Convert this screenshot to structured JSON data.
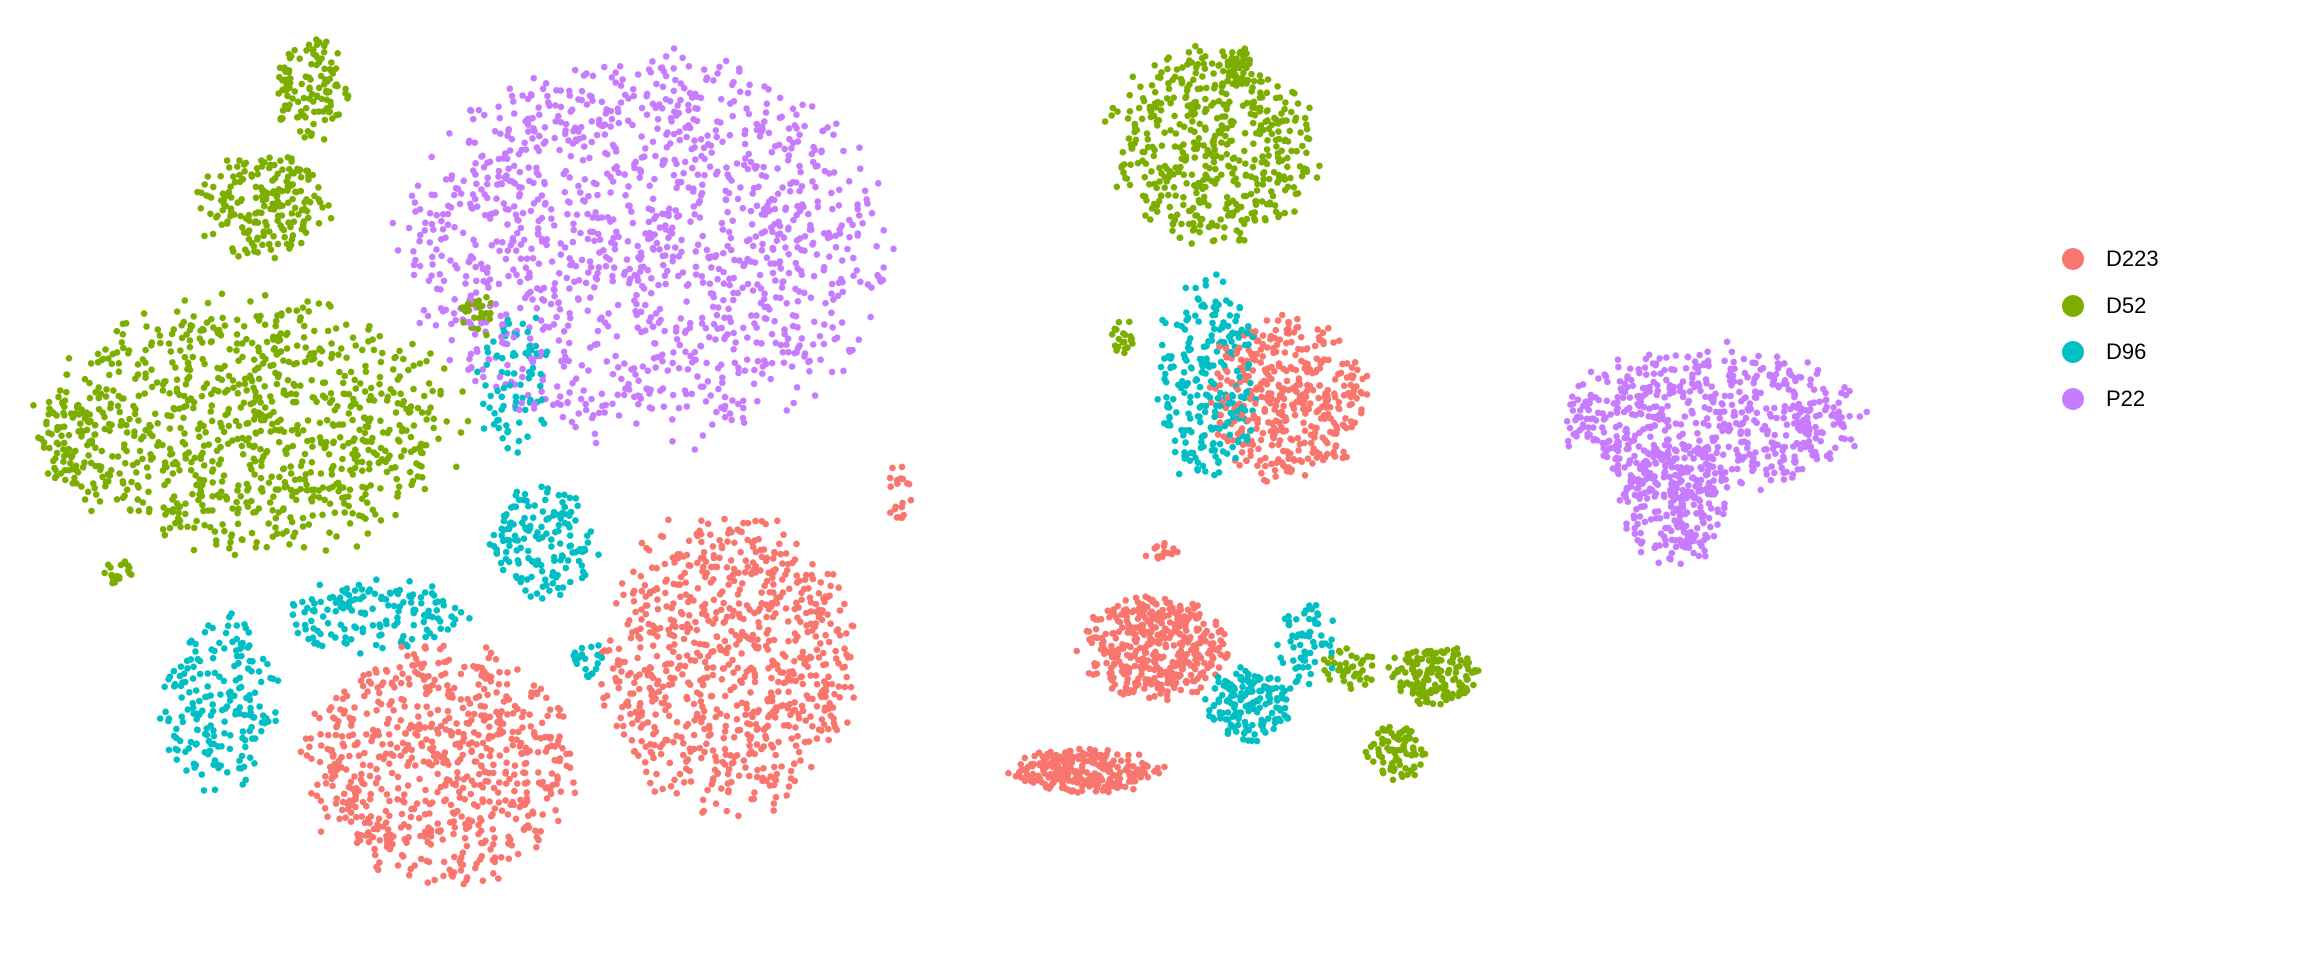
{
  "chart_data": {
    "type": "scatter",
    "title": "",
    "xlabel": "",
    "ylabel": "",
    "axes_visible": false,
    "grid": false,
    "legend": {
      "placement": "right",
      "entries": [
        "D223",
        "D52",
        "D96",
        "P22"
      ]
    },
    "point_shape": "filled circle",
    "data_note_clusters": "points summarized as clusters: center (cx, cy), spread (sx, sy) and point count n, in arbitrary embedding units",
    "series": [
      {
        "name": "D223",
        "color": "#F8766D",
        "clusters": [
          {
            "cx": -35,
            "cy": -19,
            "sx": 9,
            "sy": 8,
            "n": 700
          },
          {
            "cx": -15.5,
            "cy": -12,
            "sx": 8.5,
            "sy": 10,
            "n": 800
          },
          {
            "cx": 22.5,
            "cy": 6,
            "sx": 5.5,
            "sy": 5.5,
            "n": 400
          },
          {
            "cx": 13.5,
            "cy": -11,
            "sx": 5,
            "sy": 3.5,
            "n": 400
          },
          {
            "cx": 9,
            "cy": -19.5,
            "sx": 5,
            "sy": 1.5,
            "n": 250
          },
          {
            "cx": -3.8,
            "cy": -0.5,
            "sx": 0.8,
            "sy": 2,
            "n": 20
          },
          {
            "cx": 14,
            "cy": -4.5,
            "sx": 1.2,
            "sy": 0.6,
            "n": 15
          }
        ]
      },
      {
        "name": "D52",
        "color": "#7CAE00",
        "clusters": [
          {
            "cx": -43.8,
            "cy": 27,
            "sx": 2.5,
            "sy": 3.5,
            "n": 120
          },
          {
            "cx": -47,
            "cy": 19,
            "sx": 4.5,
            "sy": 3.5,
            "n": 200
          },
          {
            "cx": -48,
            "cy": 4,
            "sx": 14,
            "sy": 8.5,
            "n": 900
          },
          {
            "cx": -60.5,
            "cy": 3,
            "sx": 2,
            "sy": 3,
            "n": 60
          },
          {
            "cx": -57,
            "cy": -6,
            "sx": 1,
            "sy": 1,
            "n": 20
          },
          {
            "cx": 17.5,
            "cy": 23,
            "sx": 7,
            "sy": 6.5,
            "n": 500
          },
          {
            "cx": 19.5,
            "cy": 28.5,
            "sx": 1,
            "sy": 1.5,
            "n": 40
          },
          {
            "cx": 11.5,
            "cy": 10,
            "sx": 0.8,
            "sy": 1.2,
            "n": 20
          },
          {
            "cx": 32.5,
            "cy": -13,
            "sx": 3,
            "sy": 2,
            "n": 150
          },
          {
            "cx": 30,
            "cy": -18.2,
            "sx": 2,
            "sy": 1.8,
            "n": 80
          },
          {
            "cx": 27,
            "cy": -12.5,
            "sx": 2,
            "sy": 1.5,
            "n": 40
          },
          {
            "cx": -32.5,
            "cy": 11.5,
            "sx": 1.2,
            "sy": 1.5,
            "n": 30
          }
        ]
      },
      {
        "name": "D96",
        "color": "#00BFC4",
        "clusters": [
          {
            "cx": -50,
            "cy": -15,
            "sx": 4,
            "sy": 6,
            "n": 200
          },
          {
            "cx": -39.5,
            "cy": -9,
            "sx": 6,
            "sy": 2.5,
            "n": 150
          },
          {
            "cx": -28,
            "cy": -4,
            "sx": 3.5,
            "sy": 4,
            "n": 150
          },
          {
            "cx": -30,
            "cy": 7,
            "sx": 2.5,
            "sy": 5,
            "n": 80
          },
          {
            "cx": 17,
            "cy": 7,
            "sx": 3.5,
            "sy": 7,
            "n": 250
          },
          {
            "cx": 20,
            "cy": -15,
            "sx": 3,
            "sy": 2.5,
            "n": 150
          },
          {
            "cx": 24,
            "cy": -11,
            "sx": 2,
            "sy": 3,
            "n": 60
          },
          {
            "cx": -25,
            "cy": -12,
            "sx": 1.2,
            "sy": 1.2,
            "n": 20
          }
        ]
      },
      {
        "name": "P22",
        "color": "#C77CFF",
        "clusters": [
          {
            "cx": -21,
            "cy": 16,
            "sx": 16,
            "sy": 13,
            "n": 1300
          },
          {
            "cx": 51.5,
            "cy": 4.5,
            "sx": 10,
            "sy": 5,
            "n": 600
          },
          {
            "cx": 49,
            "cy": -1,
            "sx": 3.5,
            "sy": 4.5,
            "n": 250
          }
        ]
      }
    ]
  }
}
